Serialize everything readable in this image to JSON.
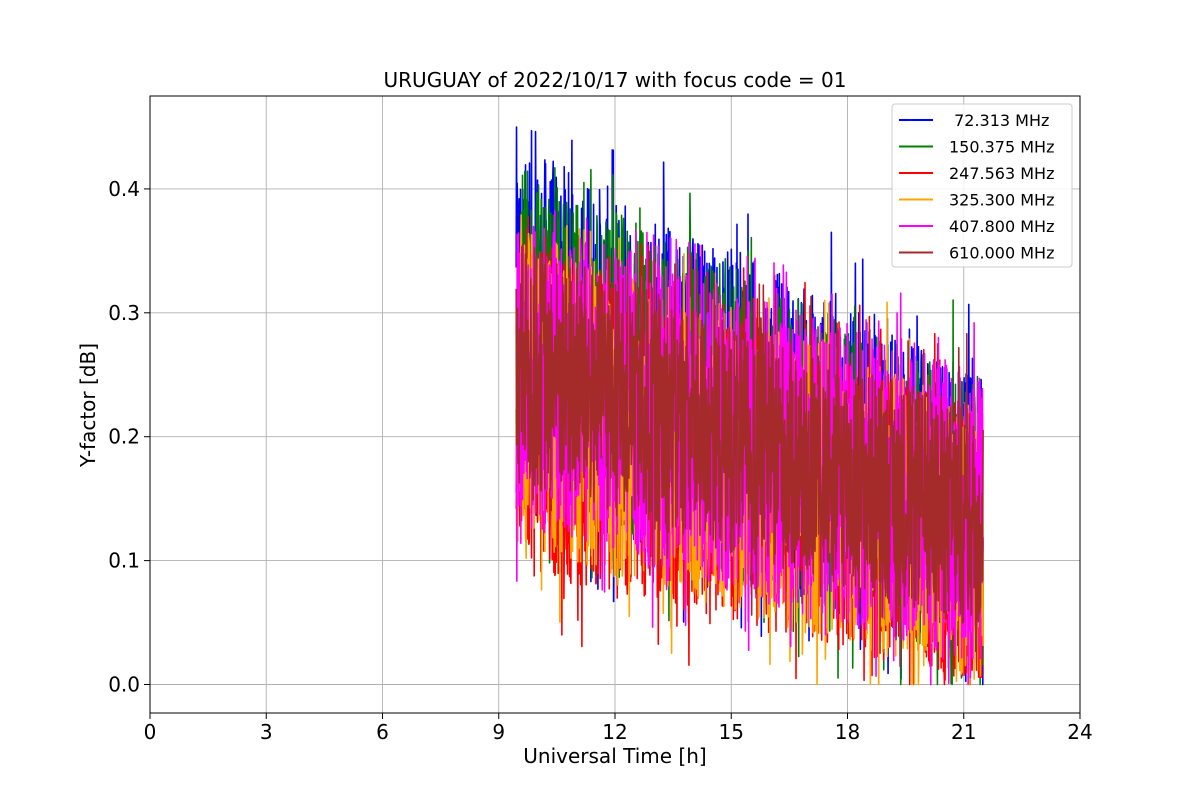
{
  "chart_data": {
    "type": "line",
    "title": "URUGUAY of 2022/10/17 with focus code = 01",
    "xlabel": "Universal Time [h]",
    "ylabel": "Y-factor [dB]",
    "xlim": [
      0,
      24
    ],
    "ylim": [
      -0.023,
      0.475
    ],
    "xticks": [
      0,
      3,
      6,
      9,
      12,
      15,
      18,
      21,
      24
    ],
    "yticks": [
      0.0,
      0.1,
      0.2,
      0.3,
      0.4
    ],
    "ytick_labels": [
      "0.0",
      "0.1",
      "0.2",
      "0.3",
      "0.4"
    ],
    "grid": true,
    "legend_position": "top-right",
    "x_range": [
      9.45,
      21.5
    ],
    "series": [
      {
        "name": " 72.313 MHz",
        "color": "#0000ff",
        "start_low": 0.14,
        "start_high": 0.44,
        "end_low": 0.02,
        "end_high": 0.25,
        "peak": 0.45
      },
      {
        "name": "150.375 MHz",
        "color": "#008000",
        "start_low": 0.14,
        "start_high": 0.42,
        "end_low": 0.015,
        "end_high": 0.24,
        "peak": 0.43
      },
      {
        "name": "247.563 MHz",
        "color": "#ff0000",
        "start_low": 0.09,
        "start_high": 0.36,
        "end_low": 0.0,
        "end_high": 0.22,
        "peak": 0.38
      },
      {
        "name": "325.300 MHz",
        "color": "#ffa500",
        "start_low": 0.11,
        "start_high": 0.37,
        "end_low": 0.0,
        "end_high": 0.23,
        "peak": 0.38
      },
      {
        "name": "407.800 MHz",
        "color": "#ff00ff",
        "start_low": 0.13,
        "start_high": 0.38,
        "end_low": 0.01,
        "end_high": 0.25,
        "peak": 0.39
      },
      {
        "name": "610.000 MHz",
        "color": "#a52a2a",
        "start_low": 0.16,
        "start_high": 0.36,
        "end_low": 0.04,
        "end_high": 0.22,
        "peak": 0.37
      }
    ]
  }
}
